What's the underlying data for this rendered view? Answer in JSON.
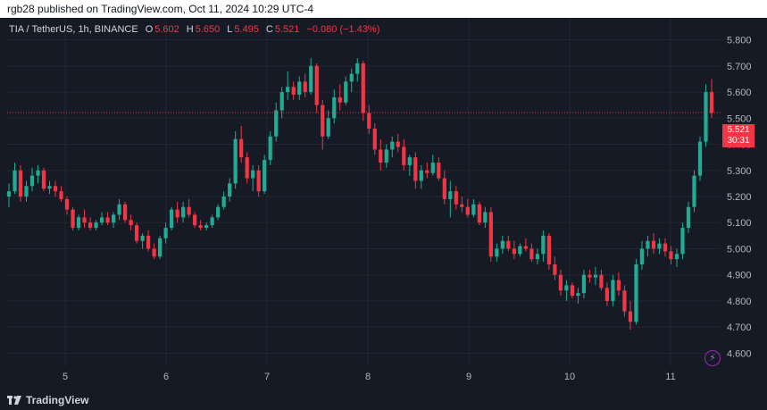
{
  "header": {
    "text": "rgb28 published on TradingView.com, Oct 11, 2024 10:29 UTC-4"
  },
  "legend": {
    "symbol": "TIA / TetherUS, 1h, BINANCE",
    "o_label": "O",
    "o_value": "5.602",
    "h_label": "H",
    "h_value": "5.650",
    "l_label": "L",
    "l_value": "5.495",
    "c_label": "C",
    "c_value": "5.521",
    "change": "−0.080 (−1.43%)"
  },
  "price_tag": {
    "price": "5.521",
    "countdown": "30:31"
  },
  "footer": {
    "brand": "TradingView"
  },
  "colors": {
    "up": "#22ab94",
    "down": "#f23645",
    "bg": "#161a25",
    "grid": "#232632",
    "axis_text": "#b2b5be"
  },
  "icons": {
    "brand_logo": "tradingview-logo-icon",
    "indicator": "lightning-bolt-icon"
  },
  "chart_data": {
    "type": "candlestick",
    "title": "TIA / TetherUS, 1h, BINANCE",
    "ylim": [
      4.55,
      5.85
    ],
    "y_ticks": [
      "5.800",
      "5.700",
      "5.600",
      "5.500",
      "5.400",
      "5.300",
      "5.200",
      "5.100",
      "5.000",
      "4.900",
      "4.800",
      "4.700",
      "4.600"
    ],
    "x_ticks": [
      "5",
      "6",
      "7",
      "8",
      "9",
      "10",
      "11"
    ],
    "grid": true,
    "last_price": 5.521,
    "candles": [
      [
        5.2,
        5.25,
        5.16,
        5.22
      ],
      [
        5.22,
        5.33,
        5.21,
        5.3
      ],
      [
        5.3,
        5.32,
        5.18,
        5.2
      ],
      [
        5.2,
        5.26,
        5.18,
        5.24
      ],
      [
        5.24,
        5.31,
        5.22,
        5.28
      ],
      [
        5.28,
        5.32,
        5.25,
        5.3
      ],
      [
        5.3,
        5.31,
        5.22,
        5.23
      ],
      [
        5.23,
        5.26,
        5.21,
        5.24
      ],
      [
        5.24,
        5.26,
        5.2,
        5.22
      ],
      [
        5.22,
        5.24,
        5.18,
        5.19
      ],
      [
        5.19,
        5.2,
        5.13,
        5.15
      ],
      [
        5.15,
        5.16,
        5.07,
        5.08
      ],
      [
        5.08,
        5.13,
        5.07,
        5.12
      ],
      [
        5.12,
        5.15,
        5.08,
        5.1
      ],
      [
        5.1,
        5.12,
        5.07,
        5.08
      ],
      [
        5.08,
        5.11,
        5.07,
        5.1
      ],
      [
        5.1,
        5.14,
        5.09,
        5.12
      ],
      [
        5.12,
        5.14,
        5.09,
        5.1
      ],
      [
        5.1,
        5.14,
        5.08,
        5.13
      ],
      [
        5.13,
        5.19,
        5.11,
        5.17
      ],
      [
        5.17,
        5.18,
        5.1,
        5.11
      ],
      [
        5.11,
        5.13,
        5.07,
        5.09
      ],
      [
        5.09,
        5.1,
        5.02,
        5.03
      ],
      [
        5.03,
        5.06,
        5.0,
        5.05
      ],
      [
        5.05,
        5.07,
        4.99,
        5.0
      ],
      [
        5.0,
        5.02,
        4.96,
        4.97
      ],
      [
        4.97,
        5.05,
        4.96,
        5.04
      ],
      [
        5.04,
        5.1,
        5.02,
        5.08
      ],
      [
        5.08,
        5.16,
        5.07,
        5.15
      ],
      [
        5.15,
        5.18,
        5.1,
        5.12
      ],
      [
        5.12,
        5.18,
        5.1,
        5.16
      ],
      [
        5.16,
        5.19,
        5.12,
        5.13
      ],
      [
        5.13,
        5.14,
        5.08,
        5.09
      ],
      [
        5.09,
        5.11,
        5.07,
        5.08
      ],
      [
        5.08,
        5.1,
        5.07,
        5.09
      ],
      [
        5.09,
        5.13,
        5.08,
        5.12
      ],
      [
        5.12,
        5.17,
        5.11,
        5.16
      ],
      [
        5.16,
        5.22,
        5.15,
        5.2
      ],
      [
        5.2,
        5.27,
        5.18,
        5.25
      ],
      [
        5.25,
        5.45,
        5.23,
        5.42
      ],
      [
        5.42,
        5.47,
        5.33,
        5.35
      ],
      [
        5.35,
        5.37,
        5.25,
        5.27
      ],
      [
        5.27,
        5.32,
        5.22,
        5.3
      ],
      [
        5.3,
        5.32,
        5.2,
        5.22
      ],
      [
        5.22,
        5.36,
        5.21,
        5.34
      ],
      [
        5.34,
        5.45,
        5.32,
        5.43
      ],
      [
        5.43,
        5.56,
        5.41,
        5.53
      ],
      [
        5.53,
        5.62,
        5.5,
        5.6
      ],
      [
        5.6,
        5.68,
        5.57,
        5.62
      ],
      [
        5.62,
        5.64,
        5.57,
        5.59
      ],
      [
        5.59,
        5.66,
        5.57,
        5.64
      ],
      [
        5.64,
        5.67,
        5.58,
        5.6
      ],
      [
        5.6,
        5.73,
        5.59,
        5.7
      ],
      [
        5.7,
        5.71,
        5.52,
        5.55
      ],
      [
        5.55,
        5.57,
        5.38,
        5.43
      ],
      [
        5.43,
        5.53,
        5.42,
        5.5
      ],
      [
        5.5,
        5.61,
        5.48,
        5.58
      ],
      [
        5.58,
        5.63,
        5.53,
        5.56
      ],
      [
        5.56,
        5.66,
        5.55,
        5.64
      ],
      [
        5.64,
        5.69,
        5.6,
        5.67
      ],
      [
        5.67,
        5.73,
        5.64,
        5.71
      ],
      [
        5.71,
        5.72,
        5.49,
        5.52
      ],
      [
        5.52,
        5.55,
        5.44,
        5.46
      ],
      [
        5.46,
        5.48,
        5.36,
        5.38
      ],
      [
        5.38,
        5.42,
        5.3,
        5.33
      ],
      [
        5.33,
        5.4,
        5.31,
        5.38
      ],
      [
        5.38,
        5.43,
        5.35,
        5.41
      ],
      [
        5.41,
        5.44,
        5.37,
        5.39
      ],
      [
        5.39,
        5.42,
        5.3,
        5.32
      ],
      [
        5.32,
        5.36,
        5.28,
        5.35
      ],
      [
        5.35,
        5.37,
        5.23,
        5.26
      ],
      [
        5.26,
        5.32,
        5.23,
        5.3
      ],
      [
        5.3,
        5.33,
        5.27,
        5.29
      ],
      [
        5.29,
        5.36,
        5.28,
        5.33
      ],
      [
        5.33,
        5.35,
        5.26,
        5.27
      ],
      [
        5.27,
        5.3,
        5.17,
        5.19
      ],
      [
        5.19,
        5.26,
        5.12,
        5.22
      ],
      [
        5.22,
        5.24,
        5.15,
        5.17
      ],
      [
        5.17,
        5.2,
        5.14,
        5.16
      ],
      [
        5.16,
        5.19,
        5.12,
        5.13
      ],
      [
        5.13,
        5.19,
        5.12,
        5.17
      ],
      [
        5.17,
        5.18,
        5.09,
        5.1
      ],
      [
        5.1,
        5.16,
        5.08,
        5.14
      ],
      [
        5.14,
        5.16,
        4.95,
        4.97
      ],
      [
        4.97,
        5.02,
        4.95,
        5.0
      ],
      [
        5.0,
        5.05,
        4.98,
        5.03
      ],
      [
        5.03,
        5.05,
        4.99,
        5.0
      ],
      [
        5.0,
        5.03,
        4.96,
        4.98
      ],
      [
        4.98,
        5.02,
        4.97,
        5.01
      ],
      [
        5.01,
        5.04,
        4.99,
        5.0
      ],
      [
        5.0,
        5.02,
        4.95,
        4.96
      ],
      [
        4.96,
        5.0,
        4.94,
        4.98
      ],
      [
        4.98,
        5.07,
        4.95,
        5.05
      ],
      [
        5.05,
        5.06,
        4.92,
        4.94
      ],
      [
        4.94,
        4.97,
        4.88,
        4.9
      ],
      [
        4.9,
        4.92,
        4.82,
        4.84
      ],
      [
        4.84,
        4.88,
        4.8,
        4.86
      ],
      [
        4.86,
        4.87,
        4.81,
        4.82
      ],
      [
        4.82,
        4.85,
        4.79,
        4.83
      ],
      [
        4.83,
        4.92,
        4.81,
        4.9
      ],
      [
        4.9,
        4.92,
        4.87,
        4.89
      ],
      [
        4.89,
        4.93,
        4.86,
        4.9
      ],
      [
        4.9,
        4.92,
        4.84,
        4.85
      ],
      [
        4.85,
        4.87,
        4.78,
        4.8
      ],
      [
        4.8,
        4.9,
        4.78,
        4.88
      ],
      [
        4.88,
        4.91,
        4.82,
        4.84
      ],
      [
        4.84,
        4.86,
        4.74,
        4.76
      ],
      [
        4.76,
        4.8,
        4.69,
        4.72
      ],
      [
        4.72,
        4.96,
        4.71,
        4.94
      ],
      [
        4.94,
        5.03,
        4.92,
        5.0
      ],
      [
        5.0,
        5.05,
        4.97,
        5.03
      ],
      [
        5.03,
        5.06,
        4.98,
        5.0
      ],
      [
        5.0,
        5.04,
        4.98,
        5.02
      ],
      [
        5.02,
        5.04,
        4.97,
        4.99
      ],
      [
        4.99,
        5.01,
        4.94,
        4.96
      ],
      [
        4.96,
        5.0,
        4.93,
        4.98
      ],
      [
        4.98,
        5.1,
        4.96,
        5.08
      ],
      [
        5.08,
        5.18,
        5.06,
        5.16
      ],
      [
        5.16,
        5.3,
        5.14,
        5.28
      ],
      [
        5.28,
        5.43,
        5.26,
        5.41
      ],
      [
        5.41,
        5.63,
        5.39,
        5.6
      ],
      [
        5.6,
        5.65,
        5.5,
        5.52
      ]
    ]
  }
}
